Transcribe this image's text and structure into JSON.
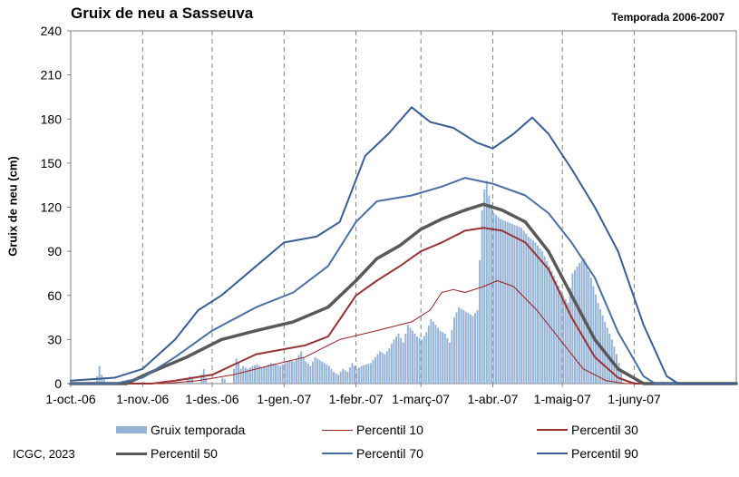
{
  "chart_data": {
    "type": "bar+line",
    "title": "Gruix de neu a Sasseuva",
    "subtitle": "Temporada 2006-2007",
    "ylabel": "Gruix de neu (cm)",
    "xlabel": "",
    "ylim": [
      0,
      240
    ],
    "yticks": [
      0,
      30,
      60,
      90,
      120,
      150,
      180,
      210,
      240
    ],
    "xlim": [
      "2006-10-01",
      "2007-07-15"
    ],
    "xticks": [
      {
        "date": "2006-10-01",
        "label": "1-oct.-06"
      },
      {
        "date": "2006-11-01",
        "label": "1-nov.-06"
      },
      {
        "date": "2006-12-01",
        "label": "1-des.-06"
      },
      {
        "date": "2007-01-01",
        "label": "1-gen.-07"
      },
      {
        "date": "2007-02-01",
        "label": "1-febr.-07"
      },
      {
        "date": "2007-03-01",
        "label": "1-març-07"
      },
      {
        "date": "2007-04-01",
        "label": "1-abr.-07"
      },
      {
        "date": "2007-05-01",
        "label": "1-maig-07"
      },
      {
        "date": "2007-06-01",
        "label": "1-juny-07"
      }
    ],
    "grid": "vertical dashed at month starts",
    "bars": {
      "name": "Gruix temporada",
      "color": "#95b3d7",
      "points": [
        [
          "2006-10-12",
          5
        ],
        [
          "2006-10-13",
          12
        ],
        [
          "2006-10-14",
          6
        ],
        [
          "2006-10-15",
          3
        ],
        [
          "2006-11-20",
          3
        ],
        [
          "2006-11-21",
          5
        ],
        [
          "2006-11-22",
          4
        ],
        [
          "2006-11-26",
          6
        ],
        [
          "2006-11-27",
          10
        ],
        [
          "2006-11-28",
          4
        ],
        [
          "2006-12-05",
          4
        ],
        [
          "2006-12-06",
          3
        ],
        [
          "2006-12-10",
          10
        ],
        [
          "2006-12-11",
          17
        ],
        [
          "2006-12-12",
          14
        ],
        [
          "2006-12-13",
          10
        ],
        [
          "2006-12-14",
          12
        ],
        [
          "2006-12-15",
          11
        ],
        [
          "2006-12-16",
          10
        ],
        [
          "2006-12-18",
          12
        ],
        [
          "2006-12-20",
          13
        ],
        [
          "2006-12-22",
          11
        ],
        [
          "2006-12-24",
          12
        ],
        [
          "2006-12-26",
          14
        ],
        [
          "2006-12-28",
          13
        ],
        [
          "2006-12-30",
          12
        ],
        [
          "2007-01-01",
          14
        ],
        [
          "2007-01-03",
          16
        ],
        [
          "2007-01-05",
          15
        ],
        [
          "2007-01-06",
          17
        ],
        [
          "2007-01-08",
          22
        ],
        [
          "2007-01-09",
          18
        ],
        [
          "2007-01-10",
          15
        ],
        [
          "2007-01-12",
          12
        ],
        [
          "2007-01-14",
          18
        ],
        [
          "2007-01-16",
          16
        ],
        [
          "2007-01-18",
          14
        ],
        [
          "2007-01-20",
          12
        ],
        [
          "2007-01-22",
          8
        ],
        [
          "2007-01-24",
          6
        ],
        [
          "2007-01-26",
          10
        ],
        [
          "2007-01-28",
          8
        ],
        [
          "2007-01-30",
          14
        ],
        [
          "2007-02-01",
          10
        ],
        [
          "2007-02-03",
          12
        ],
        [
          "2007-02-05",
          13
        ],
        [
          "2007-02-07",
          14
        ],
        [
          "2007-02-09",
          18
        ],
        [
          "2007-02-11",
          22
        ],
        [
          "2007-02-13",
          20
        ],
        [
          "2007-02-15",
          24
        ],
        [
          "2007-02-17",
          30
        ],
        [
          "2007-02-19",
          34
        ],
        [
          "2007-02-21",
          28
        ],
        [
          "2007-02-23",
          40
        ],
        [
          "2007-02-25",
          36
        ],
        [
          "2007-02-27",
          32
        ],
        [
          "2007-03-01",
          30
        ],
        [
          "2007-03-03",
          35
        ],
        [
          "2007-03-05",
          44
        ],
        [
          "2007-03-07",
          40
        ],
        [
          "2007-03-09",
          36
        ],
        [
          "2007-03-11",
          34
        ],
        [
          "2007-03-13",
          28
        ],
        [
          "2007-03-15",
          45
        ],
        [
          "2007-03-17",
          52
        ],
        [
          "2007-03-19",
          50
        ],
        [
          "2007-03-21",
          48
        ],
        [
          "2007-03-23",
          46
        ],
        [
          "2007-03-25",
          50
        ],
        [
          "2007-03-27",
          118
        ],
        [
          "2007-03-28",
          132
        ],
        [
          "2007-03-29",
          138
        ],
        [
          "2007-03-30",
          128
        ],
        [
          "2007-04-01",
          116
        ],
        [
          "2007-04-04",
          112
        ],
        [
          "2007-04-07",
          110
        ],
        [
          "2007-04-10",
          108
        ],
        [
          "2007-04-13",
          106
        ],
        [
          "2007-04-16",
          100
        ],
        [
          "2007-04-19",
          96
        ],
        [
          "2007-04-22",
          90
        ],
        [
          "2007-04-25",
          80
        ],
        [
          "2007-04-28",
          70
        ],
        [
          "2007-05-01",
          60
        ],
        [
          "2007-05-03",
          55
        ],
        [
          "2007-05-05",
          75
        ],
        [
          "2007-05-08",
          82
        ],
        [
          "2007-05-10",
          85
        ],
        [
          "2007-05-13",
          72
        ],
        [
          "2007-05-16",
          55
        ],
        [
          "2007-05-19",
          42
        ],
        [
          "2007-05-22",
          30
        ],
        [
          "2007-05-24",
          20
        ],
        [
          "2007-05-26",
          8
        ]
      ]
    },
    "series": [
      {
        "name": "Percentil 10",
        "color": "#9b1c1c",
        "width": 1,
        "points": [
          [
            "2006-10-01",
            0
          ],
          [
            "2006-11-10",
            0
          ],
          [
            "2006-11-25",
            2
          ],
          [
            "2006-12-10",
            6
          ],
          [
            "2006-12-25",
            12
          ],
          [
            "2007-01-10",
            18
          ],
          [
            "2007-01-25",
            30
          ],
          [
            "2007-02-10",
            36
          ],
          [
            "2007-02-25",
            42
          ],
          [
            "2007-03-05",
            50
          ],
          [
            "2007-03-10",
            62
          ],
          [
            "2007-03-15",
            64
          ],
          [
            "2007-03-20",
            62
          ],
          [
            "2007-03-28",
            66
          ],
          [
            "2007-04-03",
            70
          ],
          [
            "2007-04-10",
            66
          ],
          [
            "2007-04-20",
            50
          ],
          [
            "2007-04-30",
            30
          ],
          [
            "2007-05-10",
            10
          ],
          [
            "2007-05-20",
            2
          ],
          [
            "2007-05-28",
            0
          ],
          [
            "2007-07-15",
            0
          ]
        ]
      },
      {
        "name": "Percentil 30",
        "color": "#993333",
        "width": 2,
        "points": [
          [
            "2006-10-01",
            0
          ],
          [
            "2006-11-05",
            0
          ],
          [
            "2006-11-15",
            2
          ],
          [
            "2006-12-01",
            6
          ],
          [
            "2006-12-20",
            20
          ],
          [
            "2007-01-10",
            26
          ],
          [
            "2007-01-20",
            32
          ],
          [
            "2007-02-01",
            60
          ],
          [
            "2007-02-10",
            70
          ],
          [
            "2007-02-20",
            80
          ],
          [
            "2007-03-01",
            90
          ],
          [
            "2007-03-10",
            96
          ],
          [
            "2007-03-20",
            104
          ],
          [
            "2007-03-28",
            106
          ],
          [
            "2007-04-05",
            104
          ],
          [
            "2007-04-15",
            96
          ],
          [
            "2007-04-25",
            78
          ],
          [
            "2007-05-05",
            45
          ],
          [
            "2007-05-15",
            18
          ],
          [
            "2007-05-25",
            4
          ],
          [
            "2007-06-01",
            0
          ],
          [
            "2007-07-15",
            0
          ]
        ]
      },
      {
        "name": "Percentil 50",
        "color": "#595959",
        "width": 3.5,
        "points": [
          [
            "2006-10-01",
            0
          ],
          [
            "2006-10-25",
            0
          ],
          [
            "2006-11-05",
            8
          ],
          [
            "2006-11-20",
            18
          ],
          [
            "2006-12-05",
            30
          ],
          [
            "2006-12-20",
            36
          ],
          [
            "2007-01-05",
            42
          ],
          [
            "2007-01-20",
            52
          ],
          [
            "2007-02-01",
            70
          ],
          [
            "2007-02-10",
            85
          ],
          [
            "2007-02-20",
            94
          ],
          [
            "2007-03-01",
            105
          ],
          [
            "2007-03-10",
            112
          ],
          [
            "2007-03-20",
            118
          ],
          [
            "2007-03-28",
            122
          ],
          [
            "2007-04-05",
            118
          ],
          [
            "2007-04-15",
            110
          ],
          [
            "2007-04-25",
            90
          ],
          [
            "2007-05-05",
            60
          ],
          [
            "2007-05-15",
            30
          ],
          [
            "2007-05-25",
            10
          ],
          [
            "2007-06-05",
            0
          ],
          [
            "2007-07-15",
            0
          ]
        ]
      },
      {
        "name": "Percentil 70",
        "color": "#4a6fa5",
        "width": 2,
        "points": [
          [
            "2006-10-01",
            0
          ],
          [
            "2006-10-20",
            0
          ],
          [
            "2006-11-01",
            4
          ],
          [
            "2006-11-15",
            18
          ],
          [
            "2006-12-01",
            36
          ],
          [
            "2006-12-20",
            52
          ],
          [
            "2007-01-05",
            62
          ],
          [
            "2007-01-20",
            80
          ],
          [
            "2007-02-01",
            110
          ],
          [
            "2007-02-10",
            124
          ],
          [
            "2007-02-25",
            128
          ],
          [
            "2007-03-10",
            134
          ],
          [
            "2007-03-20",
            140
          ],
          [
            "2007-04-01",
            136
          ],
          [
            "2007-04-15",
            128
          ],
          [
            "2007-04-25",
            116
          ],
          [
            "2007-05-05",
            96
          ],
          [
            "2007-05-15",
            72
          ],
          [
            "2007-05-25",
            35
          ],
          [
            "2007-06-05",
            5
          ],
          [
            "2007-06-10",
            0
          ],
          [
            "2007-07-15",
            0
          ]
        ]
      },
      {
        "name": "Percentil 90",
        "color": "#3a5d94",
        "width": 2,
        "points": [
          [
            "2006-10-01",
            2
          ],
          [
            "2006-10-20",
            4
          ],
          [
            "2006-11-01",
            10
          ],
          [
            "2006-11-15",
            30
          ],
          [
            "2006-11-25",
            50
          ],
          [
            "2006-12-05",
            60
          ],
          [
            "2006-12-20",
            80
          ],
          [
            "2007-01-01",
            96
          ],
          [
            "2007-01-15",
            100
          ],
          [
            "2007-01-25",
            110
          ],
          [
            "2007-02-05",
            155
          ],
          [
            "2007-02-15",
            170
          ],
          [
            "2007-02-25",
            188
          ],
          [
            "2007-03-05",
            178
          ],
          [
            "2007-03-15",
            174
          ],
          [
            "2007-03-25",
            164
          ],
          [
            "2007-04-01",
            160
          ],
          [
            "2007-04-10",
            170
          ],
          [
            "2007-04-18",
            181
          ],
          [
            "2007-04-25",
            170
          ],
          [
            "2007-05-05",
            146
          ],
          [
            "2007-05-15",
            120
          ],
          [
            "2007-05-25",
            90
          ],
          [
            "2007-06-05",
            40
          ],
          [
            "2007-06-15",
            5
          ],
          [
            "2007-06-20",
            0
          ],
          [
            "2007-07-15",
            0
          ]
        ]
      }
    ],
    "legend": "bottom",
    "legend_items": [
      {
        "label": "Gruix temporada",
        "kind": "bar",
        "color": "#95b3d7"
      },
      {
        "label": "Percentil 10",
        "kind": "line",
        "color": "#9b1c1c",
        "width": 1
      },
      {
        "label": "Percentil 30",
        "kind": "line",
        "color": "#993333",
        "width": 2
      },
      {
        "label": "Percentil 50",
        "kind": "line",
        "color": "#595959",
        "width": 3.5
      },
      {
        "label": "Percentil 70",
        "kind": "line",
        "color": "#4a6fa5",
        "width": 2
      },
      {
        "label": "Percentil 90",
        "kind": "line",
        "color": "#3a5d94",
        "width": 2
      }
    ]
  },
  "credit": "ICGC, 2023"
}
